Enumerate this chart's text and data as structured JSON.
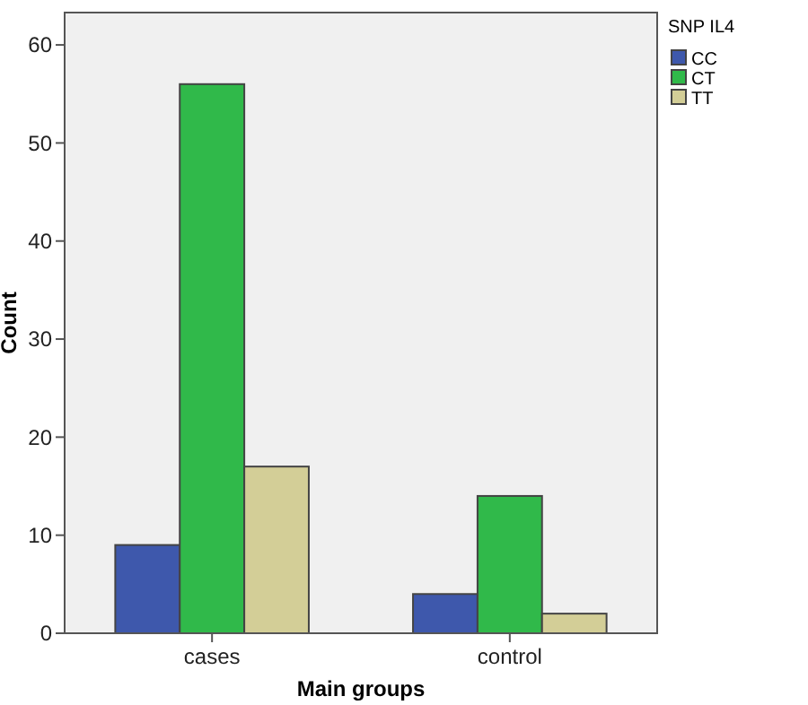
{
  "chart_data": {
    "type": "bar",
    "xlabel": "Main groups",
    "ylabel": "Count",
    "legend_title": "SNP IL4",
    "categories": [
      "cases",
      "control"
    ],
    "series": [
      {
        "name": "CC",
        "color": "#3e58ac",
        "values": [
          9,
          4
        ]
      },
      {
        "name": "CT",
        "color": "#30b94a",
        "values": [
          56,
          14
        ]
      },
      {
        "name": "TT",
        "color": "#d3ce97",
        "values": [
          17,
          2
        ]
      }
    ],
    "ylim": [
      0,
      63.3
    ],
    "yticks": [
      0,
      10,
      20,
      30,
      40,
      50,
      60
    ],
    "grid": false,
    "legend": "top right"
  }
}
